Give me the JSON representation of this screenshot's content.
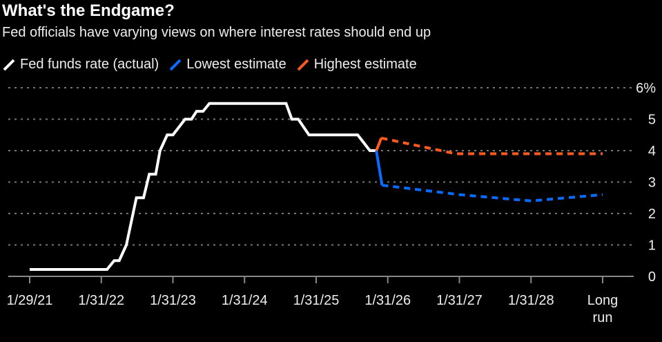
{
  "chart_data": {
    "type": "line",
    "title": "What's the Endgame?",
    "subtitle": "Fed officials have varying views on where interest rates should end up",
    "xlabel": "",
    "ylabel": "",
    "x_tick_labels": [
      "1/29/21",
      "1/31/22",
      "1/31/23",
      "1/31/24",
      "1/31/25",
      "1/31/26",
      "1/31/27",
      "1/31/28",
      "Long run"
    ],
    "x_note": "x values in tick-index units (0 = 1/29/21 ... 8 = Long run)",
    "xlim": [
      0,
      8
    ],
    "ylim": [
      0,
      6
    ],
    "y_ticks": [
      0,
      1,
      2,
      3,
      4,
      5,
      6
    ],
    "y_tick_labels": [
      "0",
      "1",
      "2",
      "3",
      "4",
      "5",
      "6%"
    ],
    "grid": true,
    "legend_position": "top-left",
    "series": [
      {
        "name": "Fed funds rate (actual)",
        "color": "#ffffff",
        "style": "solid",
        "x": [
          0,
          1.08,
          1.18,
          1.25,
          1.35,
          1.49,
          1.59,
          1.67,
          1.76,
          1.82,
          1.92,
          2.0,
          2.17,
          2.26,
          2.33,
          2.42,
          2.51,
          3.58,
          3.66,
          3.75,
          3.9,
          4.58,
          4.75,
          4.84
        ],
        "y": [
          0.22,
          0.22,
          0.5,
          0.5,
          1.0,
          2.5,
          2.5,
          3.25,
          3.25,
          4.0,
          4.5,
          4.5,
          5.0,
          5.0,
          5.25,
          5.25,
          5.5,
          5.5,
          5.0,
          5.0,
          4.5,
          4.5,
          4.0,
          4.0
        ]
      },
      {
        "name": "Lowest estimate",
        "color": "#0a6cff",
        "style": "dashed",
        "x": [
          4.84,
          4.92,
          6,
          7,
          8
        ],
        "y": [
          4.0,
          2.9,
          2.6,
          2.4,
          2.6
        ]
      },
      {
        "name": "Highest estimate",
        "color": "#ff5a1f",
        "style": "dashed",
        "x": [
          4.84,
          4.91,
          5.95,
          8
        ],
        "y": [
          4.0,
          4.4,
          3.9,
          3.9
        ]
      }
    ]
  }
}
